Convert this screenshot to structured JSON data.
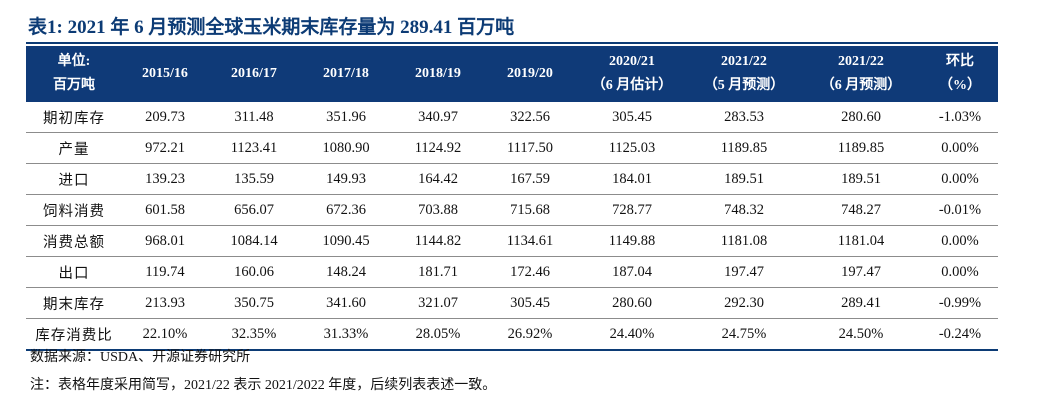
{
  "title": "表1:  2021 年 6 月预测全球玉米期末库存量为 289.41 百万吨",
  "table": {
    "unit_label_line1": "单位:",
    "unit_label_line2": "百万吨",
    "columns": [
      {
        "line1": "2015/16",
        "line2": ""
      },
      {
        "line1": "2016/17",
        "line2": ""
      },
      {
        "line1": "2017/18",
        "line2": ""
      },
      {
        "line1": "2018/19",
        "line2": ""
      },
      {
        "line1": "2019/20",
        "line2": ""
      },
      {
        "line1": "2020/21",
        "line2": "（6 月估计）"
      },
      {
        "line1": "2021/22",
        "line2": "（5 月预测）"
      },
      {
        "line1": "2021/22",
        "line2": "（6 月预测）"
      },
      {
        "line1": "环比",
        "line2": "（%）"
      }
    ],
    "rows": [
      {
        "label": "期初库存",
        "values": [
          "209.73",
          "311.48",
          "351.96",
          "340.97",
          "322.56",
          "305.45",
          "283.53",
          "280.60",
          "-1.03%"
        ]
      },
      {
        "label": "产量",
        "values": [
          "972.21",
          "1123.41",
          "1080.90",
          "1124.92",
          "1117.50",
          "1125.03",
          "1189.85",
          "1189.85",
          "0.00%"
        ]
      },
      {
        "label": "进口",
        "values": [
          "139.23",
          "135.59",
          "149.93",
          "164.42",
          "167.59",
          "184.01",
          "189.51",
          "189.51",
          "0.00%"
        ]
      },
      {
        "label": "饲料消费",
        "values": [
          "601.58",
          "656.07",
          "672.36",
          "703.88",
          "715.68",
          "728.77",
          "748.32",
          "748.27",
          "-0.01%"
        ]
      },
      {
        "label": "消费总额",
        "values": [
          "968.01",
          "1084.14",
          "1090.45",
          "1144.82",
          "1134.61",
          "1149.88",
          "1181.08",
          "1181.04",
          "0.00%"
        ]
      },
      {
        "label": "出口",
        "values": [
          "119.74",
          "160.06",
          "148.24",
          "181.71",
          "172.46",
          "187.04",
          "197.47",
          "197.47",
          "0.00%"
        ]
      },
      {
        "label": "期末库存",
        "values": [
          "213.93",
          "350.75",
          "341.60",
          "321.07",
          "305.45",
          "280.60",
          "292.30",
          "289.41",
          "-0.99%"
        ]
      },
      {
        "label": "库存消费比",
        "values": [
          "22.10%",
          "32.35%",
          "31.33%",
          "28.05%",
          "26.92%",
          "24.40%",
          "24.75%",
          "24.50%",
          "-0.24%"
        ]
      }
    ]
  },
  "source": "数据来源：USDA、开源证券研究所",
  "note": "注：表格年度采用简写，2021/22 表示 2021/2022 年度，后续列表表述一致。",
  "colors": {
    "header_bg": "#0f3a78",
    "title": "#0c3b75"
  }
}
